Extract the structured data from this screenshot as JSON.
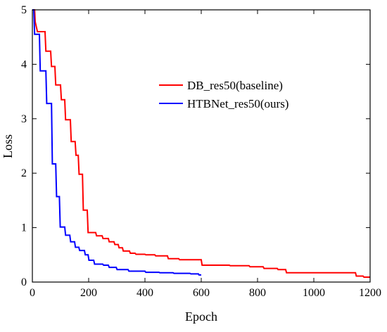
{
  "chart_data": {
    "type": "line",
    "title": "",
    "xlabel": "Epoch",
    "ylabel": "Loss",
    "xlim": [
      0,
      1200
    ],
    "ylim": [
      0,
      5
    ],
    "xticks": [
      0,
      200,
      400,
      600,
      800,
      1000,
      1200
    ],
    "yticks": [
      0,
      1,
      2,
      3,
      4,
      5
    ],
    "grid": false,
    "legend_position": "upper-right",
    "series": [
      {
        "name": "DB_res50(baseline)",
        "color": "#ff0000",
        "points": [
          [
            0,
            5.0
          ],
          [
            8,
            5.0
          ],
          [
            10,
            4.78
          ],
          [
            18,
            4.6
          ],
          [
            45,
            4.6
          ],
          [
            48,
            4.24
          ],
          [
            65,
            4.24
          ],
          [
            68,
            3.96
          ],
          [
            80,
            3.96
          ],
          [
            83,
            3.62
          ],
          [
            100,
            3.62
          ],
          [
            103,
            3.35
          ],
          [
            115,
            3.35
          ],
          [
            118,
            2.98
          ],
          [
            135,
            2.98
          ],
          [
            138,
            2.58
          ],
          [
            152,
            2.58
          ],
          [
            155,
            2.33
          ],
          [
            163,
            2.33
          ],
          [
            166,
            1.98
          ],
          [
            178,
            1.98
          ],
          [
            181,
            1.32
          ],
          [
            195,
            1.32
          ],
          [
            198,
            0.91
          ],
          [
            225,
            0.91
          ],
          [
            228,
            0.85
          ],
          [
            248,
            0.85
          ],
          [
            251,
            0.8
          ],
          [
            270,
            0.8
          ],
          [
            273,
            0.74
          ],
          [
            290,
            0.74
          ],
          [
            293,
            0.69
          ],
          [
            305,
            0.69
          ],
          [
            308,
            0.63
          ],
          [
            320,
            0.63
          ],
          [
            323,
            0.57
          ],
          [
            345,
            0.57
          ],
          [
            348,
            0.53
          ],
          [
            365,
            0.53
          ],
          [
            368,
            0.51
          ],
          [
            400,
            0.51
          ],
          [
            403,
            0.5
          ],
          [
            435,
            0.5
          ],
          [
            438,
            0.48
          ],
          [
            480,
            0.48
          ],
          [
            483,
            0.43
          ],
          [
            520,
            0.43
          ],
          [
            523,
            0.41
          ],
          [
            600,
            0.41
          ],
          [
            603,
            0.31
          ],
          [
            700,
            0.31
          ],
          [
            703,
            0.3
          ],
          [
            770,
            0.3
          ],
          [
            773,
            0.28
          ],
          [
            820,
            0.28
          ],
          [
            823,
            0.25
          ],
          [
            870,
            0.25
          ],
          [
            873,
            0.23
          ],
          [
            900,
            0.23
          ],
          [
            903,
            0.17
          ],
          [
            1000,
            0.17
          ],
          [
            1003,
            0.17
          ],
          [
            1148,
            0.17
          ],
          [
            1151,
            0.11
          ],
          [
            1175,
            0.11
          ],
          [
            1178,
            0.09
          ],
          [
            1200,
            0.09
          ]
        ]
      },
      {
        "name": "HTBNet_res50(ours)",
        "color": "#0000ff",
        "points": [
          [
            0,
            5.0
          ],
          [
            5,
            5.0
          ],
          [
            8,
            4.55
          ],
          [
            25,
            4.55
          ],
          [
            28,
            3.88
          ],
          [
            48,
            3.88
          ],
          [
            51,
            3.28
          ],
          [
            68,
            3.28
          ],
          [
            71,
            2.17
          ],
          [
            83,
            2.17
          ],
          [
            86,
            1.57
          ],
          [
            96,
            1.57
          ],
          [
            99,
            1.01
          ],
          [
            115,
            1.01
          ],
          [
            118,
            0.86
          ],
          [
            133,
            0.86
          ],
          [
            136,
            0.74
          ],
          [
            150,
            0.74
          ],
          [
            153,
            0.64
          ],
          [
            165,
            0.64
          ],
          [
            168,
            0.58
          ],
          [
            185,
            0.58
          ],
          [
            188,
            0.5
          ],
          [
            198,
            0.5
          ],
          [
            201,
            0.4
          ],
          [
            218,
            0.4
          ],
          [
            221,
            0.33
          ],
          [
            250,
            0.33
          ],
          [
            253,
            0.31
          ],
          [
            270,
            0.31
          ],
          [
            273,
            0.27
          ],
          [
            298,
            0.27
          ],
          [
            301,
            0.23
          ],
          [
            340,
            0.23
          ],
          [
            343,
            0.2
          ],
          [
            400,
            0.2
          ],
          [
            403,
            0.18
          ],
          [
            450,
            0.18
          ],
          [
            453,
            0.17
          ],
          [
            500,
            0.17
          ],
          [
            503,
            0.16
          ],
          [
            560,
            0.16
          ],
          [
            563,
            0.15
          ],
          [
            590,
            0.15
          ],
          [
            592,
            0.13
          ],
          [
            600,
            0.13
          ]
        ]
      }
    ]
  }
}
